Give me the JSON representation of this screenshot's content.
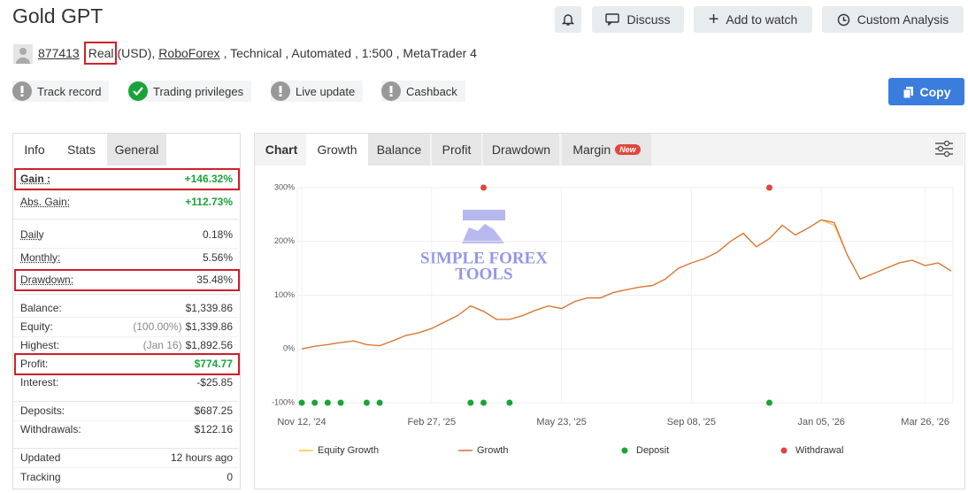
{
  "header": {
    "title": "Gold GPT",
    "buttons": [
      "Discuss",
      "Add to watch",
      "Custom Analysis"
    ]
  },
  "account": {
    "id": "877413",
    "type": "Real",
    "currency": "(USD),",
    "broker": "RoboForex",
    "details": ", Technical , Automated , 1:500 , MetaTrader 4"
  },
  "badges": [
    "Track record",
    "Trading privileges",
    "Live update",
    "Cashback"
  ],
  "copy": "Copy",
  "tabs": [
    "Info",
    "Stats",
    "General"
  ],
  "stats": [
    {
      "label": "Gain :",
      "value": "+146.32%"
    },
    {
      "label": "Abs. Gain:",
      "value": "+112.73%"
    },
    {
      "label": "Daily",
      "value": "0.18%"
    },
    {
      "label": "Monthly:",
      "value": "5.56%"
    },
    {
      "label": "Drawdown:",
      "value": "35.48%"
    },
    {
      "label": "Balance:",
      "value": "$1,339.86"
    },
    {
      "label": "Equity:",
      "note": "(100.00%)",
      "value": "$1,339.86"
    },
    {
      "label": "Highest:",
      "note": "(Jan 16)",
      "value": "$1,892.56"
    },
    {
      "label": "Profit:",
      "value": "$774.77"
    },
    {
      "label": "Interest:",
      "value": "-$25.85"
    },
    {
      "label": "Deposits:",
      "value": "$687.25"
    },
    {
      "label": "Withdrawals:",
      "value": "$122.16"
    },
    {
      "label": "Updated",
      "value": "12 hours ago"
    },
    {
      "label": "Tracking",
      "value": "0"
    }
  ],
  "chart_tabs": [
    "Chart",
    "Growth",
    "Balance",
    "Profit",
    "Drawdown",
    "Margin"
  ],
  "chart_badge": "New",
  "watermark": [
    "SIMPLE FOREX",
    "TOOLS"
  ],
  "chart_data": {
    "type": "line",
    "categories": [
      "Nov 12, '24",
      null,
      null,
      null,
      null,
      null,
      null,
      null,
      null,
      null,
      "Feb 27, '25",
      null,
      null,
      null,
      null,
      null,
      null,
      null,
      null,
      null,
      "May 23, '25",
      null,
      null,
      null,
      null,
      null,
      null,
      null,
      null,
      null,
      "Sep 08, '25",
      null,
      null,
      null,
      null,
      null,
      null,
      null,
      null,
      null,
      "Jan 05, '26",
      null,
      null,
      null,
      null,
      null,
      null,
      null,
      "Mar 26, '26",
      null,
      null
    ],
    "ylim": [
      -100,
      300
    ],
    "yticks": [
      {
        "value": 300,
        "label": "300%"
      },
      {
        "value": 200,
        "label": "200%"
      },
      {
        "value": 100,
        "label": "100%"
      },
      {
        "value": 0,
        "label": "0%"
      },
      {
        "value": -100,
        "label": "-100%"
      }
    ],
    "grid": true,
    "series": [
      {
        "name": "Equity Growth",
        "color": "#f5c842",
        "values": [
          0,
          5,
          8,
          12,
          15,
          8,
          6,
          15,
          25,
          30,
          38,
          50,
          62,
          80,
          70,
          55,
          55,
          62,
          72,
          80,
          75,
          88,
          95,
          95,
          105,
          110,
          115,
          118,
          130,
          150,
          160,
          168,
          180,
          200,
          215,
          190,
          205,
          230,
          212,
          225,
          240,
          230,
          175,
          130,
          140,
          150,
          160,
          165,
          155,
          160,
          145
        ]
      },
      {
        "name": "Growth",
        "color": "#d9733a",
        "values": [
          0,
          5,
          8,
          12,
          15,
          8,
          6,
          15,
          25,
          30,
          38,
          50,
          62,
          80,
          70,
          55,
          55,
          62,
          72,
          80,
          75,
          88,
          95,
          95,
          105,
          110,
          115,
          118,
          130,
          150,
          160,
          168,
          180,
          200,
          215,
          190,
          205,
          230,
          212,
          225,
          240,
          235,
          175,
          130,
          140,
          150,
          160,
          165,
          155,
          160,
          145
        ]
      },
      {
        "name": "Deposit",
        "color": "#1aa33a",
        "values": [
          -100,
          -100,
          -100,
          -100,
          null,
          -100,
          -100,
          null,
          null,
          null,
          null,
          null,
          null,
          -100,
          -100,
          null,
          -100,
          null,
          null,
          null,
          null,
          null,
          null,
          null,
          null,
          null,
          null,
          null,
          null,
          null,
          null,
          null,
          null,
          null,
          null,
          null,
          -100,
          null,
          null,
          null,
          null,
          null,
          null,
          null,
          null,
          null,
          null,
          null,
          null,
          null,
          null
        ]
      },
      {
        "name": "Withdrawal",
        "color": "#e0463c",
        "values": [
          null,
          null,
          null,
          null,
          null,
          null,
          null,
          null,
          null,
          null,
          null,
          null,
          null,
          null,
          300,
          null,
          null,
          null,
          null,
          null,
          null,
          null,
          null,
          null,
          null,
          null,
          null,
          null,
          null,
          null,
          null,
          null,
          null,
          null,
          null,
          null,
          300,
          null,
          null,
          null,
          null,
          null,
          null,
          null,
          null,
          null,
          null,
          null,
          null,
          null,
          null
        ]
      }
    ]
  }
}
